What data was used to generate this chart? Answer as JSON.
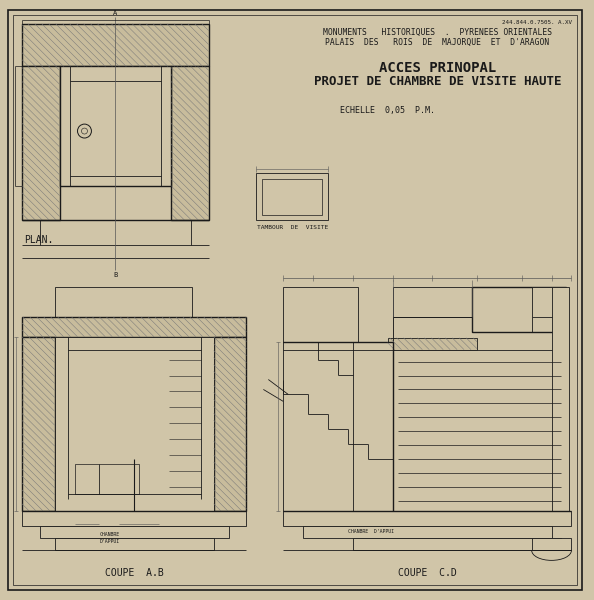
{
  "paper_color": "#d0c5a8",
  "line_color": "#1a1a1a",
  "hatch_color": "#8a7f6a",
  "dim_color": "#555555",
  "title_line1": "MONUMENTS   HISTORIQUES  .  PYRENEES ORIENTALES",
  "title_line2": "PALAIS  DES   ROIS  DE  MAJORQUE  ET  D'ARAGON",
  "main_title1": "ACCES PRINOPAL",
  "main_title2": "PROJET DE CHAMBRE DE VISITE HAUTE",
  "scale_text": "ECHELLE  0,05  P.M.",
  "ref_text": "244.844.0.7505. A.XV",
  "label_plan": "PLAN.",
  "label_coupe_ab": "COUPE  A.B",
  "label_coupe_cd": "COUPE  C.D",
  "label_tambour": "TAMBOUR  DE  VISITE"
}
